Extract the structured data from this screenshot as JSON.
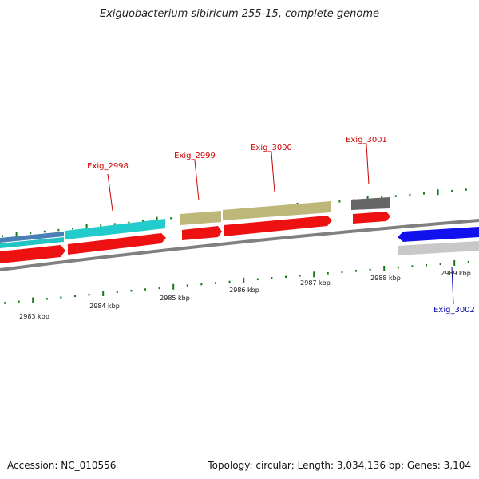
{
  "title": "Exiguobacterium sibiricum 255-15, complete genome",
  "footer": {
    "accession": "Accession: NC_010556",
    "summary": "Topology: circular; Length: 3,034,136 bp; Genes: 3,104"
  },
  "scale": {
    "labels": [
      "2983 kbp",
      "2984 kbp",
      "2985 kbp",
      "2986 kbp",
      "2987 kbp",
      "2988 kbp",
      "2989 kbp"
    ]
  },
  "gene_labels": [
    {
      "name": "Exig_2998",
      "color": "#cc0000"
    },
    {
      "name": "Exig_2999",
      "color": "#cc0000"
    },
    {
      "name": "Exig_3000",
      "color": "#cc0000"
    },
    {
      "name": "Exig_3001",
      "color": "#cc0000"
    },
    {
      "name": "Exig_3002",
      "color": "#0000aa"
    }
  ],
  "colors": {
    "cds_forward": "#ee1111",
    "cds_reverse": "#1111ee",
    "backbone": "#888888",
    "tick": "#1a7a1a",
    "gene_cyan": "#22cccc",
    "gene_olive": "#bdb77a",
    "gene_gray": "#666666",
    "gene_lightgray": "#c8c8c8",
    "gene_steel": "#4a7fb5"
  }
}
